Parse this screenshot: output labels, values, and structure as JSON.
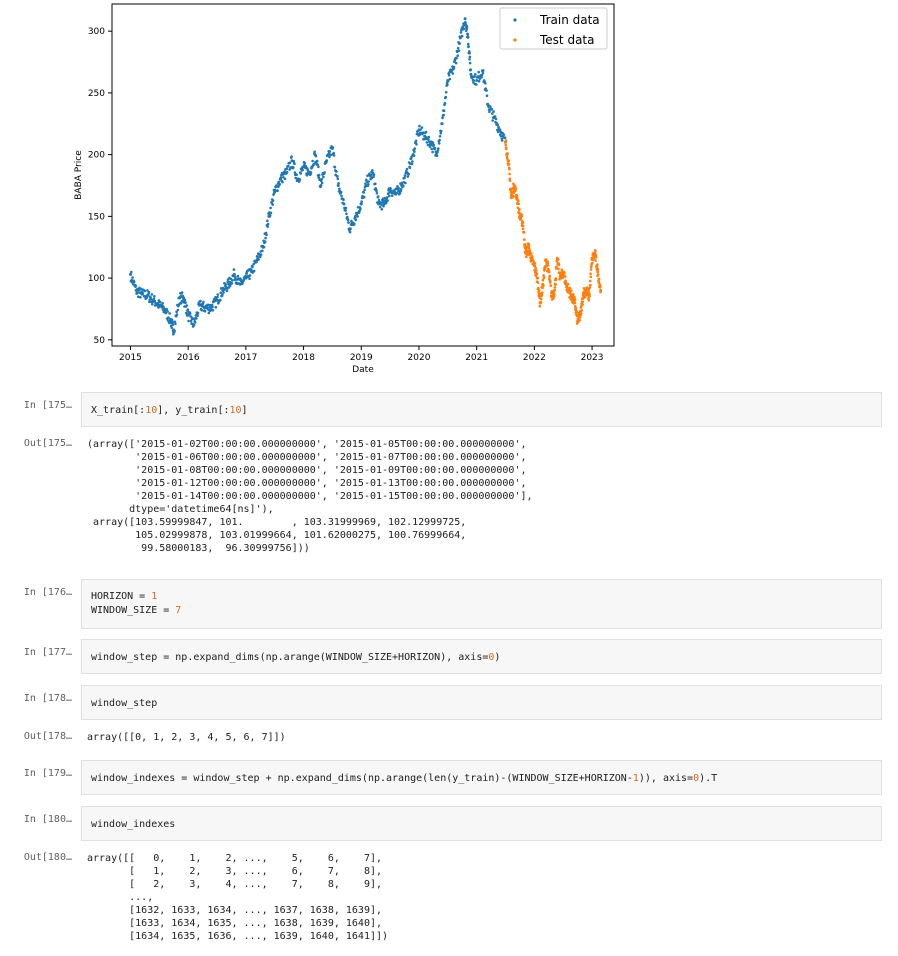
{
  "chart_data": {
    "type": "scatter",
    "xlabel": "Date",
    "ylabel": "BABA Price",
    "x_ticks": [
      "2015",
      "2016",
      "2017",
      "2018",
      "2019",
      "2020",
      "2021",
      "2022",
      "2023"
    ],
    "y_ticks": [
      "50",
      "100",
      "150",
      "200",
      "250",
      "300"
    ],
    "xlim": [
      2014.68,
      2023.38
    ],
    "ylim": [
      45,
      322
    ],
    "legend_position": "top-right",
    "grid": false,
    "series": [
      {
        "name": "Train data",
        "color": "#1f77b4",
        "x": [
          2015.0,
          2015.1,
          2015.2,
          2015.3,
          2015.4,
          2015.5,
          2015.6,
          2015.7,
          2015.75,
          2015.85,
          2015.92,
          2016.0,
          2016.1,
          2016.2,
          2016.3,
          2016.4,
          2016.5,
          2016.6,
          2016.7,
          2016.8,
          2016.9,
          2017.0,
          2017.1,
          2017.2,
          2017.3,
          2017.4,
          2017.5,
          2017.6,
          2017.7,
          2017.8,
          2017.9,
          2018.0,
          2018.1,
          2018.2,
          2018.3,
          2018.4,
          2018.5,
          2018.6,
          2018.7,
          2018.8,
          2018.9,
          2019.0,
          2019.1,
          2019.2,
          2019.3,
          2019.4,
          2019.5,
          2019.6,
          2019.7,
          2019.8,
          2019.9,
          2020.0,
          2020.1,
          2020.2,
          2020.3,
          2020.4,
          2020.5,
          2020.6,
          2020.7,
          2020.8,
          2020.85,
          2020.9,
          2021.0,
          2021.1,
          2021.2,
          2021.3,
          2021.4,
          2021.5
        ],
        "y": [
          103,
          90,
          87,
          86,
          82,
          78,
          74,
          65,
          58,
          84,
          84,
          70,
          62,
          78,
          76,
          76,
          82,
          90,
          95,
          103,
          95,
          100,
          105,
          115,
          125,
          150,
          170,
          180,
          185,
          195,
          180,
          190,
          185,
          200,
          175,
          195,
          205,
          175,
          160,
          140,
          150,
          160,
          178,
          185,
          160,
          160,
          172,
          168,
          175,
          185,
          200,
          220,
          215,
          210,
          200,
          225,
          260,
          270,
          290,
          310,
          295,
          265,
          260,
          268,
          240,
          230,
          220,
          210
        ]
      },
      {
        "name": "Test data",
        "color": "#ff7f0e",
        "x": [
          2021.5,
          2021.55,
          2021.6,
          2021.65,
          2021.7,
          2021.75,
          2021.8,
          2021.85,
          2021.9,
          2021.95,
          2022.0,
          2022.05,
          2022.1,
          2022.15,
          2022.2,
          2022.25,
          2022.3,
          2022.35,
          2022.4,
          2022.45,
          2022.5,
          2022.55,
          2022.6,
          2022.65,
          2022.7,
          2022.75,
          2022.8,
          2022.85,
          2022.9,
          2022.95,
          2023.0,
          2023.05,
          2023.1,
          2023.15
        ],
        "y": [
          210,
          195,
          165,
          175,
          165,
          150,
          145,
          120,
          125,
          115,
          110,
          100,
          80,
          95,
          115,
          105,
          85,
          90,
          115,
          100,
          105,
          95,
          90,
          85,
          80,
          65,
          70,
          88,
          90,
          85,
          115,
          120,
          105,
          90
        ]
      }
    ]
  },
  "cells": [
    {
      "prompt": "In [175…",
      "code": "X_train[:10], y_train[:10]"
    },
    {
      "prompt": "Out[175…",
      "output": "(array(['2015-01-02T00:00:00.000000000', '2015-01-05T00:00:00.000000000',\n        '2015-01-06T00:00:00.000000000', '2015-01-07T00:00:00.000000000',\n        '2015-01-08T00:00:00.000000000', '2015-01-09T00:00:00.000000000',\n        '2015-01-12T00:00:00.000000000', '2015-01-13T00:00:00.000000000',\n        '2015-01-14T00:00:00.000000000', '2015-01-15T00:00:00.000000000'],\n       dtype='datetime64[ns]'),\n array([103.59999847, 101.        , 103.31999969, 102.12999725,\n        105.02999878, 103.01999664, 101.62000275, 100.76999664,\n         99.58000183,  96.30999756]))"
    },
    {
      "prompt": "In [176…",
      "code_lines": [
        "HORIZON = 1",
        "WINDOW_SIZE = 7"
      ]
    },
    {
      "prompt": "In [177…",
      "code": "window_step = np.expand_dims(np.arange(WINDOW_SIZE+HORIZON), axis=0)"
    },
    {
      "prompt": "In [178…",
      "code": "window_step"
    },
    {
      "prompt": "Out[178…",
      "output": "array([[0, 1, 2, 3, 4, 5, 6, 7]])"
    },
    {
      "prompt": "In [179…",
      "code": "window_indexes = window_step + np.expand_dims(np.arange(len(y_train)-(WINDOW_SIZE+HORIZON-1)), axis=0).T"
    },
    {
      "prompt": "In [180…",
      "code": "window_indexes"
    },
    {
      "prompt": "Out[180…",
      "output": "array([[   0,    1,    2, ...,    5,    6,    7],\n       [   1,    2,    3, ...,    6,    7,    8],\n       [   2,    3,    4, ...,    7,    8,    9],\n       ...,\n       [1632, 1633, 1634, ..., 1637, 1638, 1639],\n       [1633, 1634, 1635, ..., 1638, 1639, 1640],\n       [1634, 1635, 1636, ..., 1639, 1640, 1641]])"
    }
  ]
}
